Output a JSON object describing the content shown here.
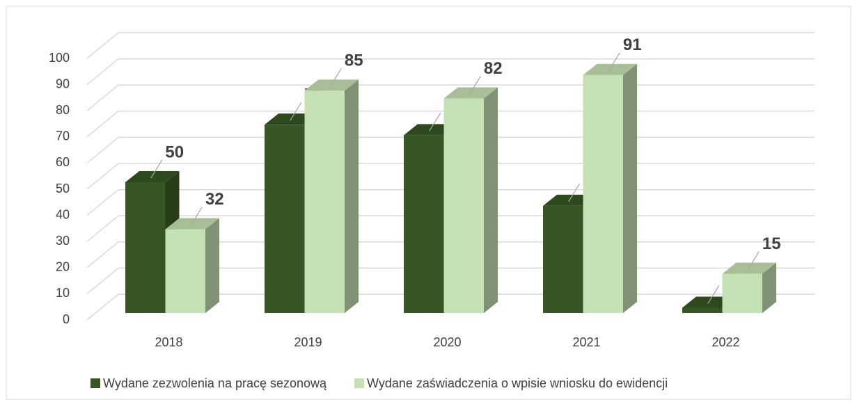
{
  "chart_data": {
    "type": "bar3d",
    "categories": [
      "2018",
      "2019",
      "2020",
      "2021",
      "2022"
    ],
    "series": [
      {
        "name": "Wydane zezwolenia na pracę sezonową",
        "color": "#375623",
        "values": [
          50,
          72,
          68,
          41,
          2
        ]
      },
      {
        "name": "Wydane zaświadczenia o wpisie wniosku do ewidencji",
        "color": "#c5e0b4",
        "values": [
          32,
          85,
          82,
          91,
          15
        ]
      }
    ],
    "ylim": [
      0,
      100
    ],
    "yticks": [
      0,
      10,
      20,
      30,
      40,
      50,
      60,
      70,
      80,
      90,
      100
    ],
    "grid": true,
    "legend": "bottom"
  }
}
